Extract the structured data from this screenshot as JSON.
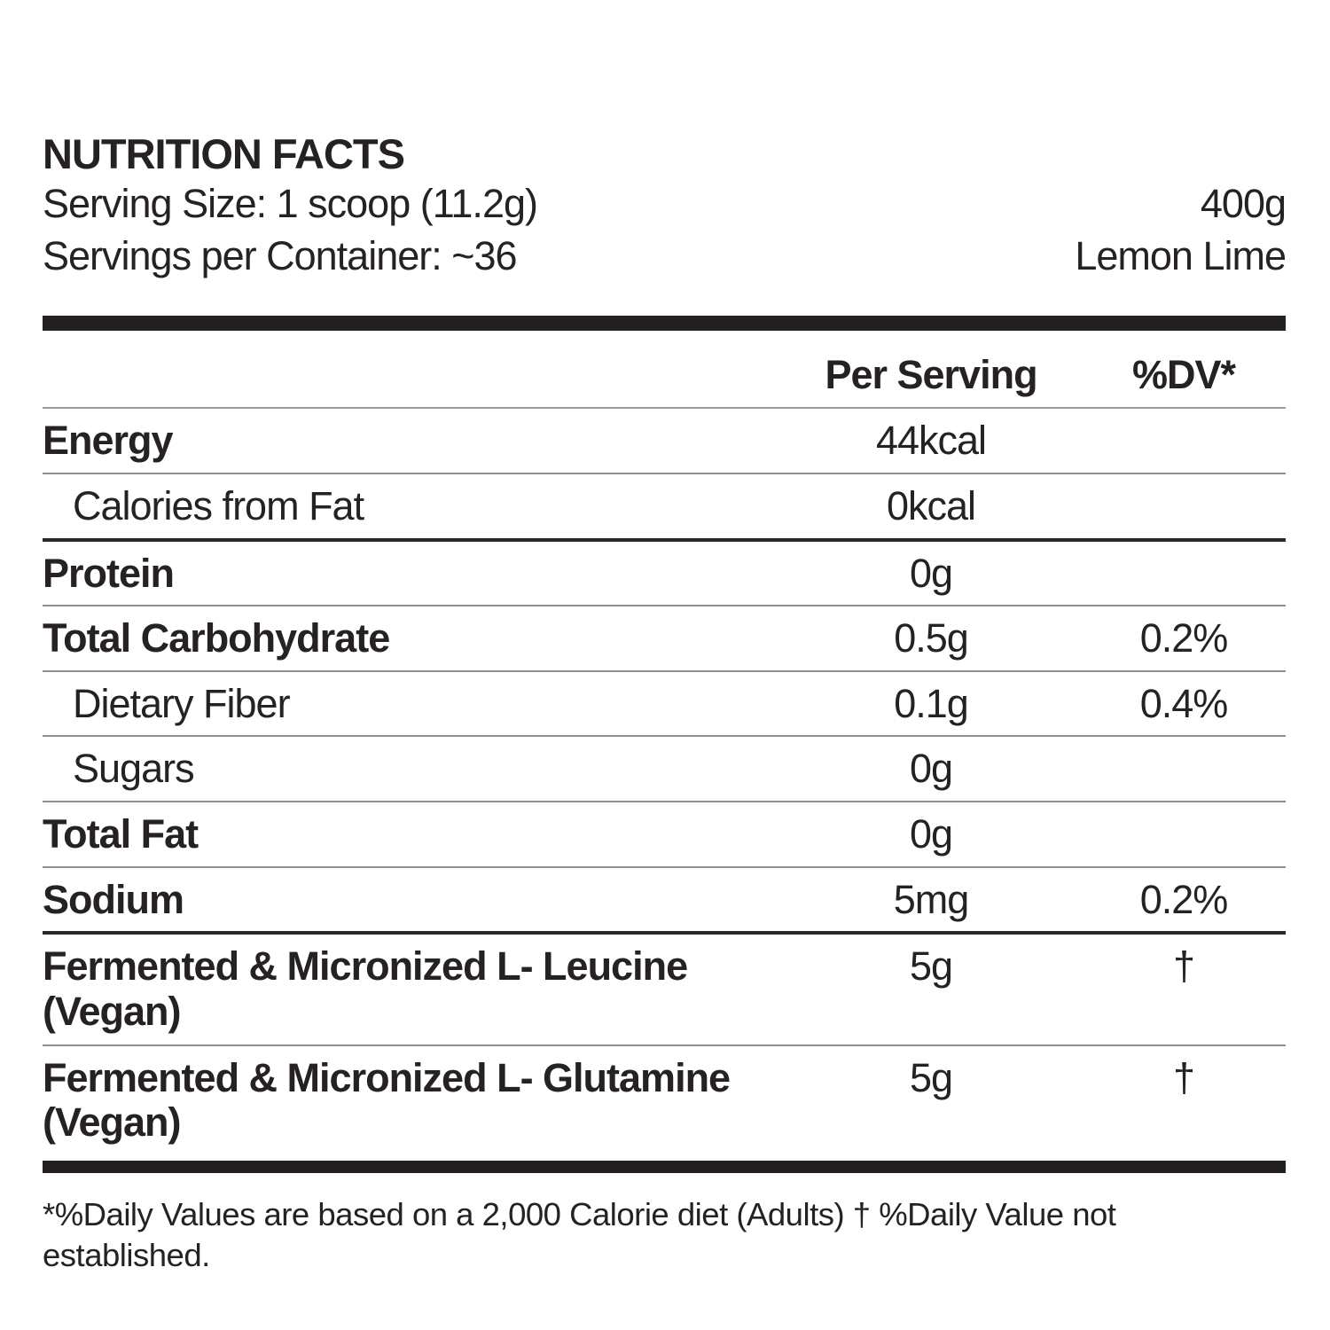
{
  "header": {
    "title": "NUTRITION FACTS",
    "serving_size": "Serving Size: 1 scoop (11.2g)",
    "servings_per_container": "Servings per Container: ~36",
    "net_weight": "400g",
    "flavor": "Lemon Lime"
  },
  "table": {
    "columns": {
      "per_serving": "Per Serving",
      "dv": "%DV*"
    },
    "rows": [
      {
        "label": "Energy",
        "label_line2": "",
        "bold": true,
        "indent": false,
        "per_serving": "44kcal",
        "dv": "",
        "sep": "thin"
      },
      {
        "label": "Calories from Fat",
        "label_line2": "",
        "bold": false,
        "indent": true,
        "per_serving": "0kcal",
        "dv": "",
        "sep": "dark"
      },
      {
        "label": "Protein",
        "label_line2": "",
        "bold": true,
        "indent": false,
        "per_serving": "0g",
        "dv": "",
        "sep": "thin"
      },
      {
        "label": "Total Carbohydrate",
        "label_line2": "",
        "bold": true,
        "indent": false,
        "per_serving": "0.5g",
        "dv": "0.2%",
        "sep": "thin"
      },
      {
        "label": "Dietary Fiber",
        "label_line2": "",
        "bold": false,
        "indent": true,
        "per_serving": "0.1g",
        "dv": "0.4%",
        "sep": "thin"
      },
      {
        "label": "Sugars",
        "label_line2": "",
        "bold": false,
        "indent": true,
        "per_serving": "0g",
        "dv": "",
        "sep": "thin"
      },
      {
        "label": "Total Fat",
        "label_line2": "",
        "bold": true,
        "indent": false,
        "per_serving": "0g",
        "dv": "",
        "sep": "thin"
      },
      {
        "label": "Sodium",
        "label_line2": "",
        "bold": true,
        "indent": false,
        "per_serving": "5mg",
        "dv": "0.2%",
        "sep": "dark"
      },
      {
        "label": "Fermented & Micronized L- Leucine",
        "label_line2": "(Vegan)",
        "bold": true,
        "indent": false,
        "per_serving": "5g",
        "dv": "†",
        "sep": "thin"
      },
      {
        "label": "Fermented & Micronized L- Glutamine",
        "label_line2": "(Vegan)",
        "bold": true,
        "indent": false,
        "per_serving": "5g",
        "dv": "†",
        "sep": "none"
      }
    ]
  },
  "footnote": "*%Daily Values are based on a 2,000 Calorie diet (Adults) † %Daily Value not established.",
  "colors": {
    "text": "#262223",
    "bar": "#242021",
    "separator_thin": "#8f8f8f",
    "separator_dark": "#2c2829"
  }
}
